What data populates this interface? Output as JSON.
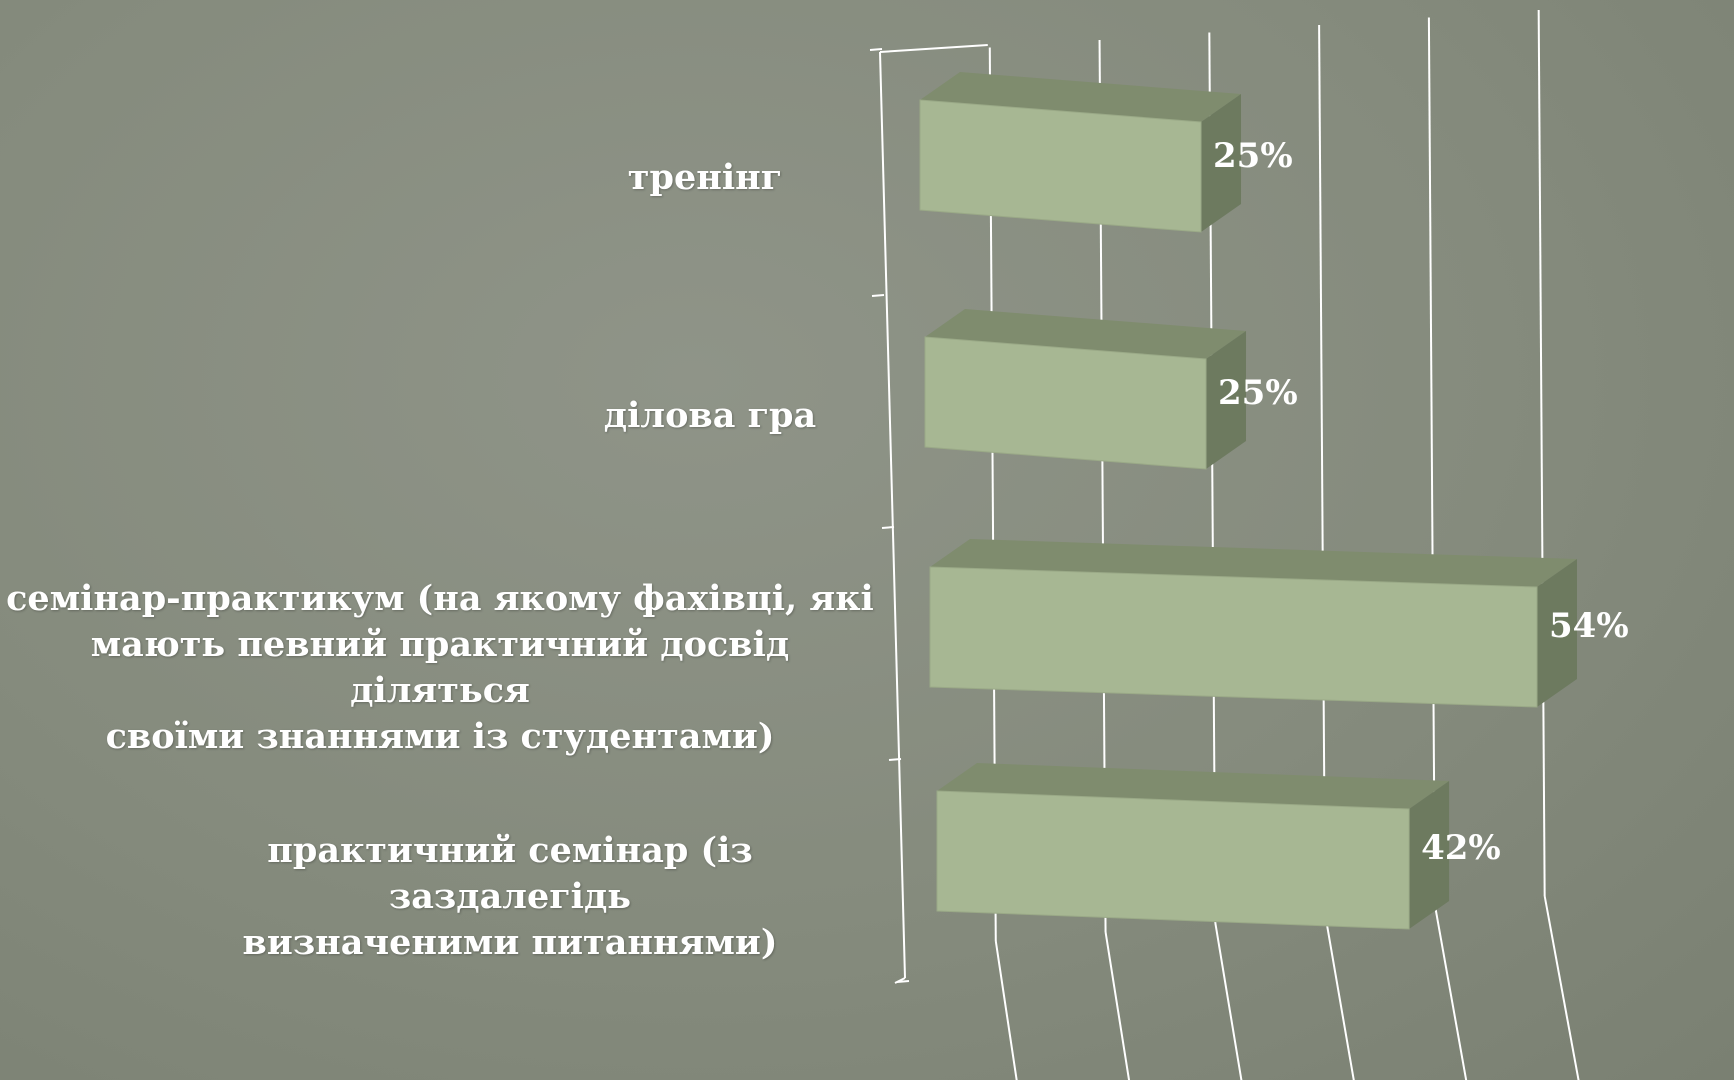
{
  "chart_data": {
    "type": "bar",
    "orientation": "horizontal",
    "style": "3d",
    "categories": [
      "тренінг",
      "ділова гра",
      "семінар-практикум (на якому фахівці, які мають певний практичний досвід діляться своїми знаннями із студентами)",
      "практичний семінар (із заздалегідь визначеними питаннями)"
    ],
    "category_lines": [
      [
        "тренінг"
      ],
      [
        "ділова гра"
      ],
      [
        "семінар-практикум (на якому фахівці, які",
        "мають певний практичний досвід діляться",
        "своїми знаннями із студентами)"
      ],
      [
        "практичний семінар (із заздалегідь",
        "визначеними питаннями)"
      ]
    ],
    "values": [
      25,
      25,
      54,
      42
    ],
    "value_labels": [
      "25%",
      "25%",
      "54%",
      "42%"
    ],
    "xlim": [
      0,
      60
    ],
    "grid": true,
    "legend": "none",
    "colors": {
      "bar_front": "#a7b793",
      "bar_top": "#7f8c6e",
      "bar_side": "#6d7a5f",
      "grid": "#ffffff",
      "background": "#858b7d"
    }
  }
}
